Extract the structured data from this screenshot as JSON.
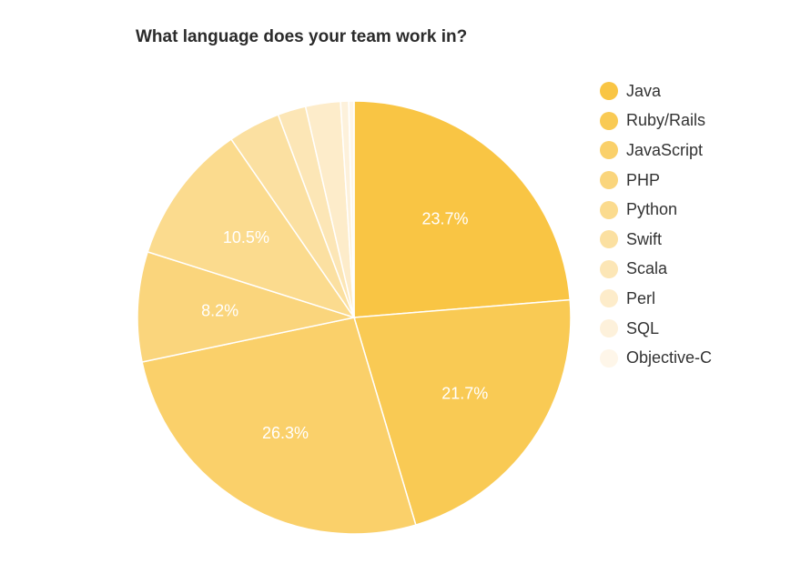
{
  "chart_data": {
    "type": "pie",
    "title": "What language does your team work in?",
    "slices": [
      {
        "name": "Java",
        "value": 23.7,
        "label": "23.7%",
        "color": "#f9c544"
      },
      {
        "name": "Ruby/Rails",
        "value": 21.7,
        "label": "21.7%",
        "color": "#f9ca54"
      },
      {
        "name": "JavaScript",
        "value": 26.3,
        "label": "26.3%",
        "color": "#fad06a"
      },
      {
        "name": "PHP",
        "value": 8.2,
        "label": "8.2%",
        "color": "#fad57c"
      },
      {
        "name": "Python",
        "value": 10.5,
        "label": "10.5%",
        "color": "#fbdb8e"
      },
      {
        "name": "Swift",
        "value": 3.9,
        "label": "",
        "color": "#fbe0a1"
      },
      {
        "name": "Scala",
        "value": 2.1,
        "label": "",
        "color": "#fce6b6"
      },
      {
        "name": "Perl",
        "value": 2.6,
        "label": "",
        "color": "#fdecca"
      },
      {
        "name": "SQL",
        "value": 0.6,
        "label": "",
        "color": "#fdf1db"
      },
      {
        "name": "Objective-C",
        "value": 0.4,
        "label": "",
        "color": "#fef6e9"
      }
    ],
    "legend_position": "right"
  }
}
